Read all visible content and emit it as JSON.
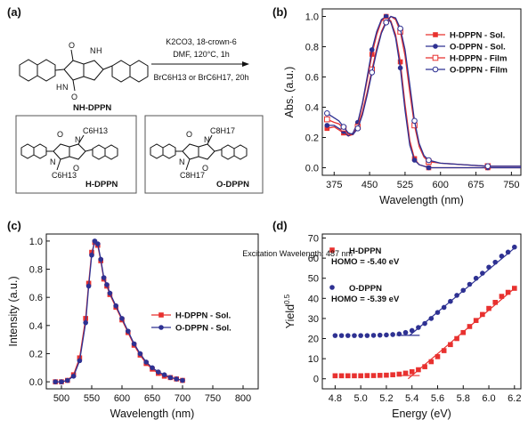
{
  "panels": {
    "a": {
      "label": "(a)",
      "compound_start": "NH-DPPN",
      "reagents_line1": "K2CO3, 18-crown-6",
      "reagents_line2": "DMF, 120°C, 1h",
      "reagents_line3": "BrC6H13 or BrC6H17, 20h",
      "product1": "H-DPPN",
      "product2": "O-DPPN",
      "sub_hexyl": "C6H13",
      "sub_octyl": "C8H17",
      "atom_O": "O",
      "atom_N": "N",
      "atom_H": "H"
    },
    "b": {
      "label": "(b)"
    },
    "c": {
      "label": "(c)",
      "annotation": "Excitation Wavelength: 487 nm"
    },
    "d": {
      "label": "(d)",
      "homo_h": "HOMO = -5.40 eV",
      "homo_o": "HOMO = -5.39 eV"
    }
  },
  "colors": {
    "red": "#e8312f",
    "blue": "#2e3192"
  },
  "chart_data": [
    {
      "id": "b",
      "type": "line",
      "xlabel": "Wavelength (nm)",
      "ylabel": "Abs. (a.u.)",
      "xlim": [
        350,
        770
      ],
      "ylim": [
        -0.05,
        1.05
      ],
      "xticks": [
        375,
        450,
        525,
        600,
        675,
        750
      ],
      "yticks": [
        0.0,
        0.2,
        0.4,
        0.6,
        0.8,
        1.0
      ],
      "legend_position": "top-right",
      "series": [
        {
          "name": "H-DPPN - Sol.",
          "color": "#e8312f",
          "marker": "square-filled",
          "x": [
            360,
            375,
            385,
            395,
            405,
            415,
            425,
            435,
            445,
            455,
            465,
            475,
            485,
            495,
            505,
            515,
            525,
            535,
            545,
            555,
            565,
            575,
            600,
            650,
            700,
            750,
            770
          ],
          "y": [
            0.26,
            0.27,
            0.25,
            0.23,
            0.21,
            0.22,
            0.29,
            0.42,
            0.58,
            0.75,
            0.88,
            0.97,
            1.0,
            0.97,
            0.88,
            0.7,
            0.42,
            0.18,
            0.06,
            0.02,
            0.01,
            0.0,
            0.0,
            0.0,
            0.0,
            0.0,
            0.0
          ]
        },
        {
          "name": "O-DPPN - Sol.",
          "color": "#2e3192",
          "marker": "circle-filled",
          "x": [
            360,
            375,
            385,
            395,
            405,
            415,
            425,
            435,
            445,
            455,
            465,
            475,
            485,
            495,
            505,
            515,
            525,
            535,
            545,
            555,
            565,
            575,
            600,
            650,
            700,
            750,
            770
          ],
          "y": [
            0.28,
            0.28,
            0.26,
            0.24,
            0.21,
            0.23,
            0.3,
            0.43,
            0.6,
            0.78,
            0.9,
            0.98,
            1.0,
            0.96,
            0.86,
            0.66,
            0.38,
            0.15,
            0.05,
            0.02,
            0.01,
            0.0,
            0.0,
            0.0,
            0.0,
            0.0,
            0.0
          ]
        },
        {
          "name": "H-DPPN - Film",
          "color": "#e8312f",
          "marker": "square-open",
          "x": [
            360,
            375,
            385,
            395,
            405,
            415,
            425,
            435,
            445,
            455,
            465,
            475,
            485,
            495,
            505,
            515,
            525,
            535,
            545,
            555,
            565,
            575,
            600,
            650,
            700,
            750,
            770
          ],
          "y": [
            0.32,
            0.3,
            0.29,
            0.26,
            0.22,
            0.22,
            0.27,
            0.37,
            0.5,
            0.65,
            0.79,
            0.9,
            0.97,
            1.0,
            0.98,
            0.9,
            0.74,
            0.5,
            0.28,
            0.14,
            0.07,
            0.04,
            0.03,
            0.02,
            0.01,
            0.01,
            0.01
          ]
        },
        {
          "name": "O-DPPN - Film",
          "color": "#2e3192",
          "marker": "circle-open",
          "x": [
            360,
            375,
            385,
            395,
            405,
            415,
            425,
            435,
            445,
            455,
            465,
            475,
            485,
            495,
            505,
            515,
            525,
            535,
            545,
            555,
            565,
            575,
            600,
            650,
            700,
            750,
            770
          ],
          "y": [
            0.36,
            0.33,
            0.31,
            0.27,
            0.23,
            0.22,
            0.26,
            0.35,
            0.48,
            0.63,
            0.77,
            0.89,
            0.96,
            1.0,
            0.99,
            0.92,
            0.78,
            0.55,
            0.31,
            0.16,
            0.08,
            0.05,
            0.03,
            0.02,
            0.01,
            0.01,
            0.01
          ]
        }
      ]
    },
    {
      "id": "c",
      "type": "line",
      "xlabel": "Wavelength (nm)",
      "ylabel": "Intensity (a.u.)",
      "xlim": [
        475,
        825
      ],
      "ylim": [
        -0.05,
        1.05
      ],
      "xticks": [
        500,
        550,
        600,
        650,
        700,
        750,
        800
      ],
      "yticks": [
        0.0,
        0.2,
        0.4,
        0.6,
        0.8,
        1.0
      ],
      "legend_position": "center-right",
      "series": [
        {
          "name": "H-DPPN - Sol.",
          "color": "#e8312f",
          "marker": "square-filled",
          "x": [
            490,
            500,
            510,
            520,
            530,
            540,
            545,
            550,
            555,
            560,
            565,
            570,
            575,
            580,
            590,
            600,
            610,
            620,
            630,
            640,
            650,
            660,
            670,
            680,
            690,
            700
          ],
          "y": [
            0.0,
            0.0,
            0.01,
            0.05,
            0.17,
            0.45,
            0.7,
            0.92,
            0.99,
            0.97,
            0.86,
            0.73,
            0.68,
            0.62,
            0.53,
            0.44,
            0.35,
            0.26,
            0.19,
            0.13,
            0.09,
            0.06,
            0.04,
            0.03,
            0.02,
            0.01
          ]
        },
        {
          "name": "O-DPPN - Sol.",
          "color": "#2e3192",
          "marker": "circle-filled",
          "x": [
            490,
            500,
            510,
            520,
            530,
            540,
            545,
            550,
            555,
            560,
            565,
            570,
            575,
            580,
            590,
            600,
            610,
            620,
            630,
            640,
            650,
            660,
            670,
            680,
            690,
            700
          ],
          "y": [
            0.0,
            0.0,
            0.01,
            0.04,
            0.15,
            0.42,
            0.68,
            0.9,
            1.0,
            0.98,
            0.87,
            0.74,
            0.69,
            0.63,
            0.54,
            0.45,
            0.36,
            0.27,
            0.2,
            0.14,
            0.1,
            0.07,
            0.05,
            0.03,
            0.02,
            0.01
          ]
        }
      ]
    },
    {
      "id": "d",
      "type": "scatter",
      "xlabel": "Energy (eV)",
      "ylabel": "Yield0.5",
      "xlim": [
        4.7,
        6.25
      ],
      "ylim": [
        -5,
        72
      ],
      "xticks": [
        4.8,
        5.0,
        5.2,
        5.4,
        5.6,
        5.8,
        6.0,
        6.2
      ],
      "yticks": [
        0,
        10,
        20,
        30,
        40,
        50,
        60,
        70
      ],
      "legend_position": "top-left",
      "series": [
        {
          "name": "H-DPPN",
          "color": "#e8312f",
          "marker": "square-filled",
          "x": [
            4.8,
            4.85,
            4.9,
            4.95,
            5.0,
            5.05,
            5.1,
            5.15,
            5.2,
            5.25,
            5.3,
            5.35,
            5.4,
            5.45,
            5.5,
            5.55,
            5.6,
            5.65,
            5.7,
            5.75,
            5.8,
            5.85,
            5.9,
            5.95,
            6.0,
            6.05,
            6.1,
            6.15,
            6.2
          ],
          "y": [
            1.5,
            1.5,
            1.5,
            1.5,
            1.5,
            1.6,
            1.6,
            1.7,
            1.8,
            2.0,
            2.3,
            2.8,
            3.5,
            4.5,
            6.0,
            8.5,
            11,
            14,
            17,
            20,
            23,
            26,
            29,
            32,
            35,
            38,
            41,
            43,
            45
          ]
        },
        {
          "name": "O-DPPN",
          "color": "#2e3192",
          "marker": "circle-filled",
          "x": [
            4.8,
            4.85,
            4.9,
            4.95,
            5.0,
            5.05,
            5.1,
            5.15,
            5.2,
            5.25,
            5.3,
            5.35,
            5.4,
            5.45,
            5.5,
            5.55,
            5.6,
            5.65,
            5.7,
            5.75,
            5.8,
            5.85,
            5.9,
            5.95,
            6.0,
            6.05,
            6.1,
            6.15,
            6.2
          ],
          "y": [
            21.5,
            21.5,
            21.5,
            21.5,
            21.5,
            21.5,
            21.6,
            21.7,
            21.8,
            22,
            22.3,
            23,
            24,
            25.5,
            27.5,
            30,
            33,
            35.5,
            38.5,
            41.5,
            44,
            47,
            50,
            52.5,
            55.5,
            58,
            61,
            63,
            65.5
          ]
        }
      ],
      "fits": [
        {
          "color": "#e8312f",
          "x": [
            5.37,
            6.2
          ],
          "y": [
            0,
            45
          ]
        },
        {
          "color": "#2e3192",
          "x": [
            5.38,
            6.2
          ],
          "y": [
            21.5,
            65
          ]
        },
        {
          "color": "#e8312f",
          "x": [
            5.3,
            5.46
          ],
          "y": [
            1.6,
            1.6
          ]
        },
        {
          "color": "#2e3192",
          "x": [
            5.28,
            5.46
          ],
          "y": [
            21.6,
            21.6
          ]
        }
      ]
    }
  ]
}
